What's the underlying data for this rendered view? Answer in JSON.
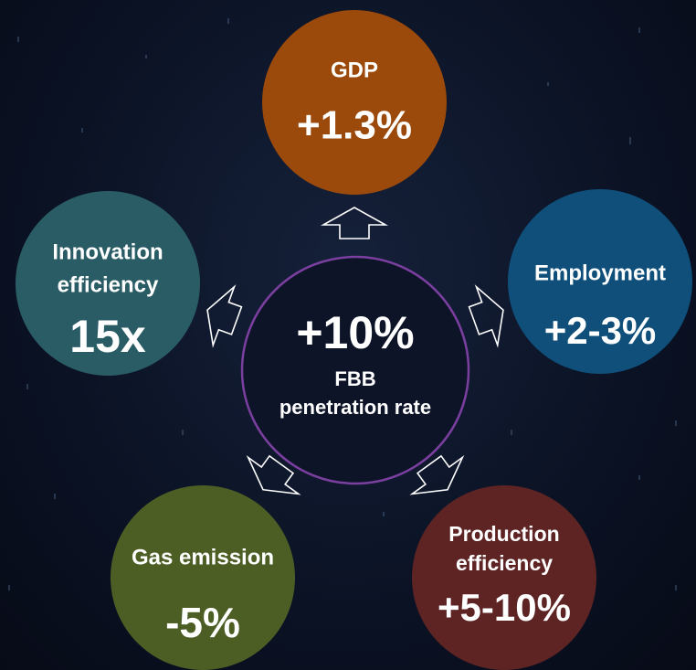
{
  "center": {
    "value": "+10%",
    "label": [
      "FBB",
      "penetration rate"
    ]
  },
  "nodes": [
    {
      "label": [
        "GDP"
      ],
      "value": "+1.3%"
    },
    {
      "label": [
        "Employment"
      ],
      "value": "+2-3%"
    },
    {
      "label": [
        "Production",
        "efficiency"
      ],
      "value": "+5-10%"
    },
    {
      "label": [
        "Gas emission"
      ],
      "value": "-5%"
    },
    {
      "label": [
        "Innovation",
        "efficiency"
      ],
      "value": "15x"
    }
  ]
}
